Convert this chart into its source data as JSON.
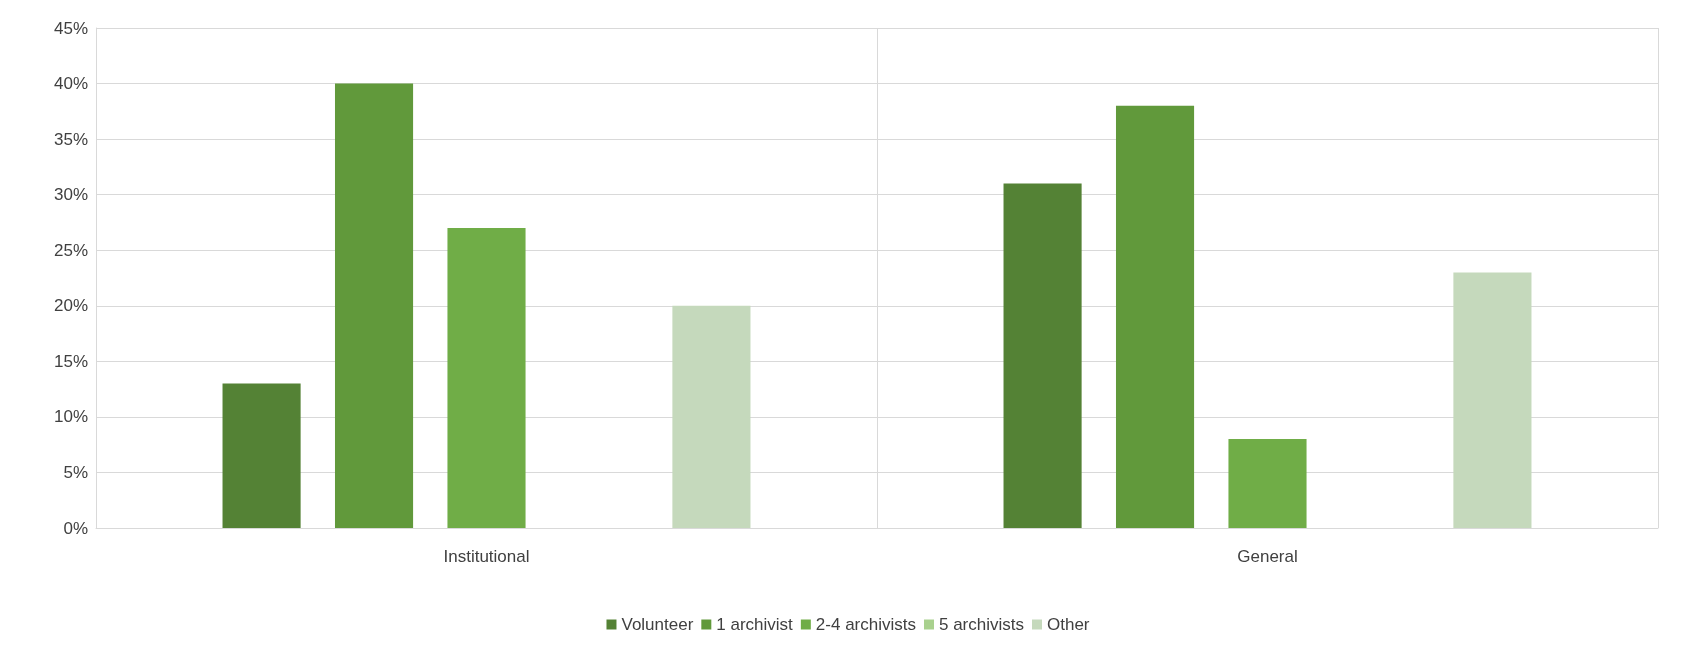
{
  "chart_data": {
    "type": "bar",
    "categories": [
      "Institutional",
      "General"
    ],
    "series": [
      {
        "name": "Volunteer",
        "color": "#548235",
        "values": [
          13,
          31
        ]
      },
      {
        "name": "1 archivist",
        "color": "#61993b",
        "values": [
          40,
          38
        ]
      },
      {
        "name": "2-4 archivists",
        "color": "#70ad47",
        "values": [
          27,
          8
        ]
      },
      {
        "name": "5 archivists",
        "color": "#a9d18e",
        "values": [
          0,
          0
        ]
      },
      {
        "name": "Other",
        "color": "#c5d9bc",
        "values": [
          20,
          23
        ]
      }
    ],
    "ylim": [
      0,
      45
    ],
    "yticks": [
      {
        "value": 0,
        "label": "0%"
      },
      {
        "value": 5,
        "label": "5%"
      },
      {
        "value": 10,
        "label": "10%"
      },
      {
        "value": 15,
        "label": "15%"
      },
      {
        "value": 20,
        "label": "20%"
      },
      {
        "value": 25,
        "label": "25%"
      },
      {
        "value": 30,
        "label": "30%"
      },
      {
        "value": 35,
        "label": "35%"
      },
      {
        "value": 40,
        "label": "40%"
      },
      {
        "value": 45,
        "label": "45%"
      }
    ],
    "grid": true,
    "legend": "bottom"
  }
}
